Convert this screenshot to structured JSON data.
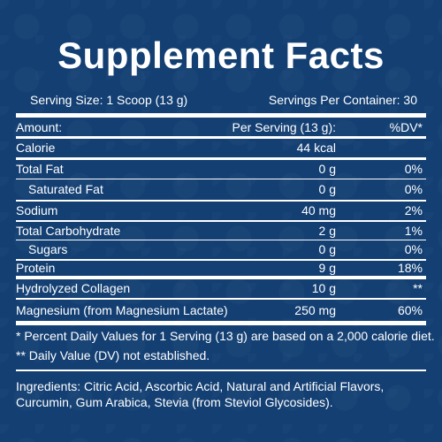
{
  "title": "Supplement Facts",
  "serving_size": "Serving Size: 1 Scoop (13 g)",
  "servings_per_container": "Servings Per Container: 30",
  "header": {
    "amount": "Amount:",
    "per_serving": "Per Serving (13 g):",
    "dv": "%DV*"
  },
  "rows": [
    {
      "name": "Calorie",
      "amount": "44 kcal",
      "dv": ""
    },
    {
      "name": "Total Fat",
      "amount": "0 g",
      "dv": "0%"
    },
    {
      "name": "Saturated Fat",
      "amount": "0 g",
      "dv": "0%"
    },
    {
      "name": "Sodium",
      "amount": "40 mg",
      "dv": "2%"
    },
    {
      "name": "Total Carbohydrate",
      "amount": "2 g",
      "dv": "1%"
    },
    {
      "name": "Sugars",
      "amount": "0 g",
      "dv": "0%"
    },
    {
      "name": "Protein",
      "amount": "9 g",
      "dv": "18%"
    },
    {
      "name": "Hydrolyzed Collagen",
      "amount": "10 g",
      "dv": "**"
    },
    {
      "name": "Magnesium (from Magnesium Lactate)",
      "amount": "250 mg",
      "dv": "60%"
    }
  ],
  "footnotes": [
    "* Percent Daily Values for 1 Serving (13 g) are based on a 2,000 calorie diet.",
    "** Daily Value (DV) not established."
  ],
  "ingredients": "Ingredients: Citric Acid, Ascorbic Acid, Natural and Artificial Flavors, Curcumin, Gum Arabica, Stevia (from Steviol Glycosides).",
  "colors": {
    "background": "#133f73",
    "text": "#ffffff"
  }
}
